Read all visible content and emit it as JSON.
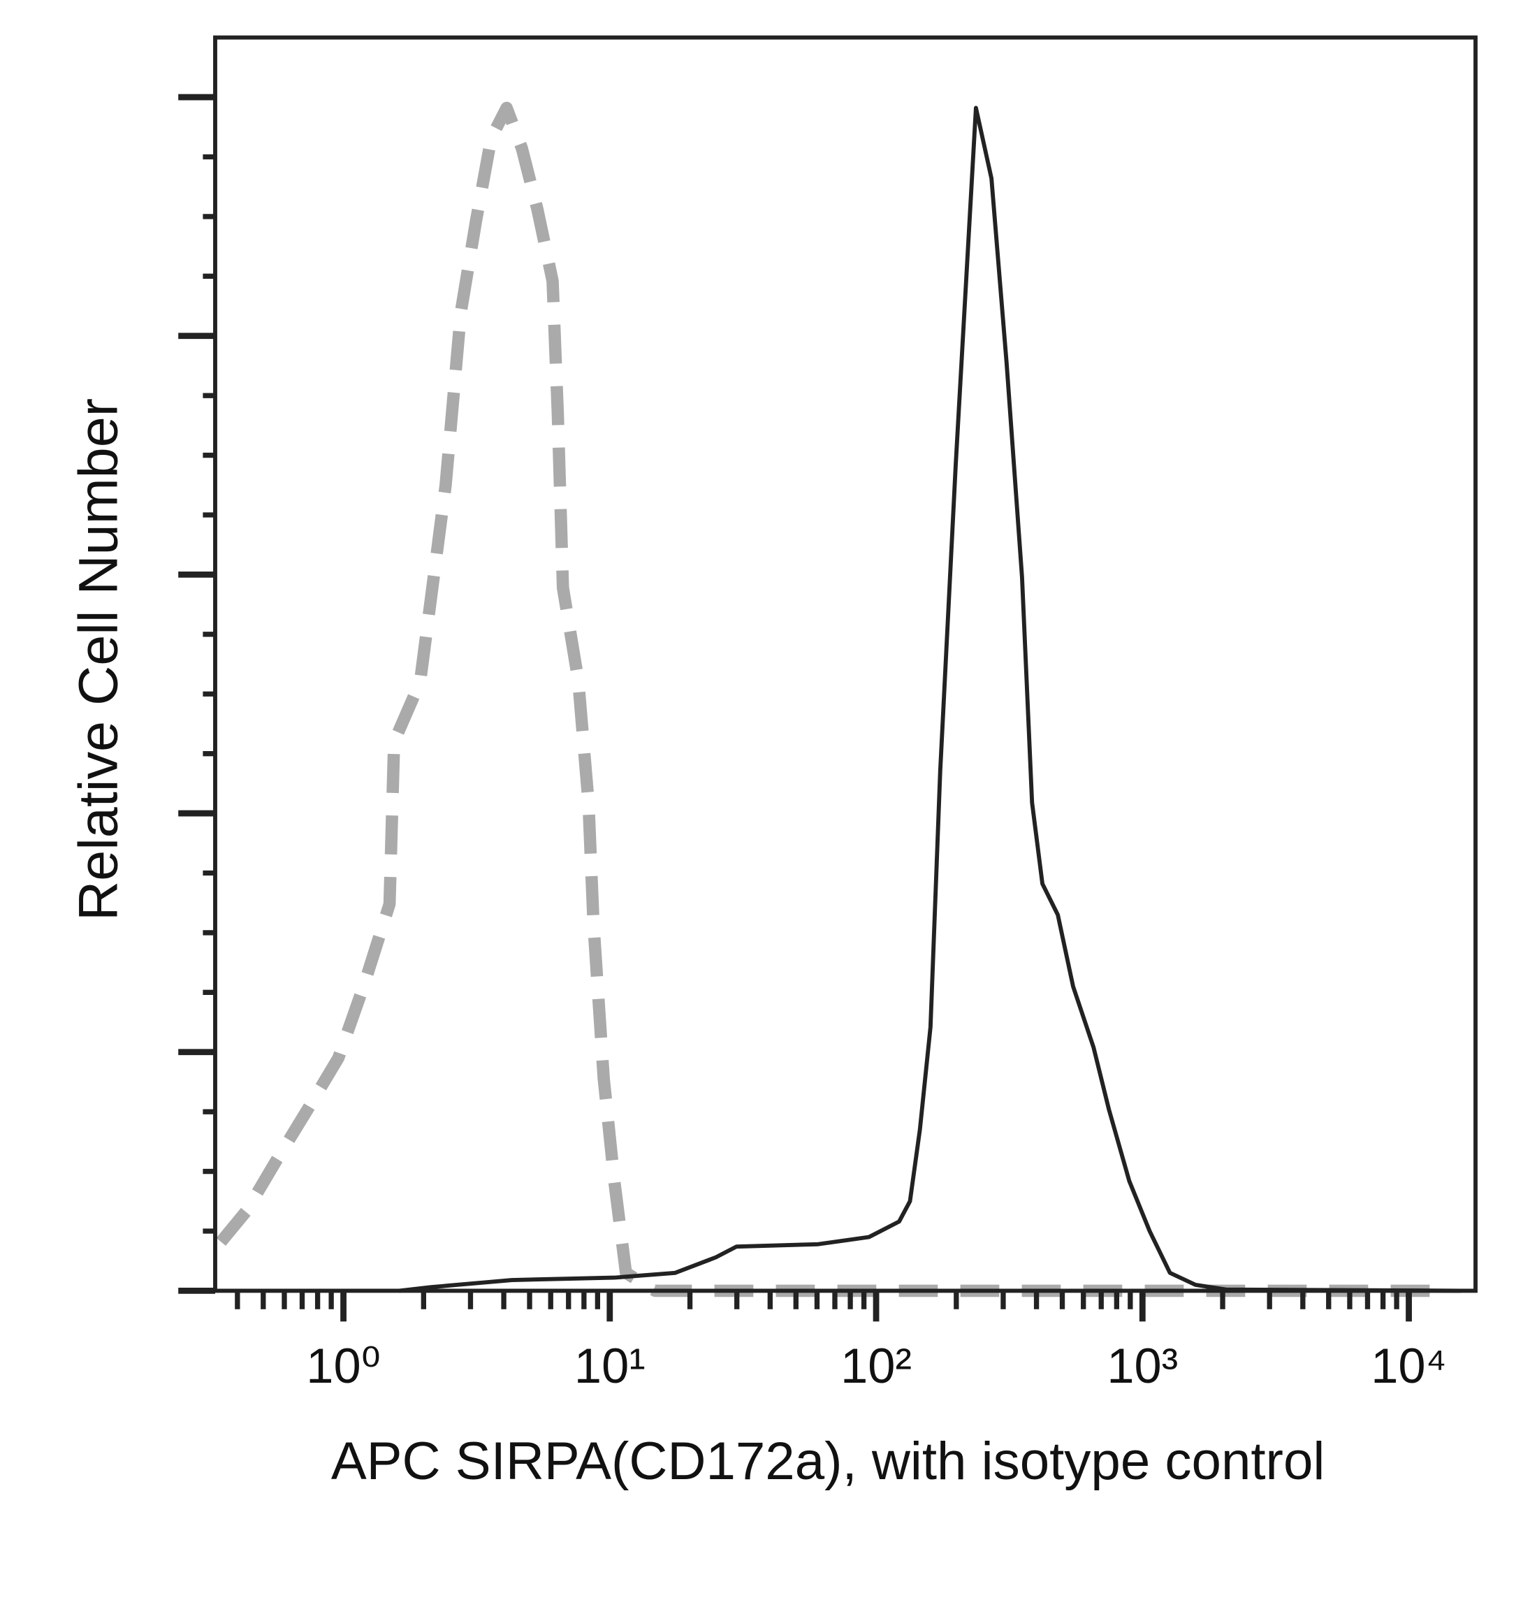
{
  "chart_data": {
    "type": "line",
    "xscale": "log",
    "xlabel": "APC SIRPA(CD172a), with isotype control",
    "ylabel": "Relative Cell Number",
    "xlim": [
      0.33,
      17800
    ],
    "ylim": [
      0,
      105
    ],
    "xticks": [
      {
        "value": 1,
        "label": "10⁰"
      },
      {
        "value": 10,
        "label": "10¹"
      },
      {
        "value": 100,
        "label": "10²"
      },
      {
        "value": 1000,
        "label": "10³"
      },
      {
        "value": 10000,
        "label": "10⁴"
      }
    ],
    "xminor_ticks": [
      0.4,
      0.5,
      0.6,
      0.7,
      0.8,
      0.9,
      2,
      3,
      4,
      5,
      6,
      7,
      8,
      9,
      20,
      30,
      40,
      50,
      60,
      70,
      80,
      90,
      200,
      300,
      400,
      500,
      600,
      700,
      800,
      900,
      2000,
      3000,
      4000,
      5000,
      6000,
      7000,
      8000,
      9000
    ],
    "yticks": [
      0,
      20,
      40,
      60,
      80,
      100
    ],
    "yminor_ticks": [
      5,
      10,
      15,
      25,
      30,
      35,
      45,
      50,
      55,
      65,
      70,
      75,
      85,
      90,
      95
    ],
    "ytick_labels": false,
    "grid": false,
    "series": [
      {
        "color": "#aaaaaa",
        "dash": true,
        "x": [
          0.347,
          0.433,
          0.563,
          0.734,
          0.957,
          1.19,
          1.49,
          1.55,
          1.94,
          2.42,
          2.76,
          3.15,
          3.59,
          4.1,
          4.68,
          5.35,
          6.1,
          6.38,
          6.67,
          7.61,
          8.32,
          8.69,
          9.49,
          10.4,
          11.5,
          14.8,
          353,
          14400
        ],
        "values": [
          4.1,
          6.7,
          11,
          15.2,
          19.5,
          25.5,
          32.4,
          46,
          51,
          67.5,
          82,
          89.7,
          96.6,
          99.1,
          95.7,
          90.6,
          84.6,
          73.5,
          58.9,
          51.2,
          40.9,
          30.7,
          17.8,
          9.2,
          1.5,
          0,
          0,
          0
        ]
      },
      {
        "color": "#222222",
        "dash": false,
        "x": [
          1.62,
          2.12,
          4.29,
          10.4,
          17.6,
          25,
          29.9,
          60.5,
          94,
          122,
          134,
          146,
          160,
          174,
          199,
          237,
          271,
          309,
          353,
          385,
          421,
          481,
          549,
          655,
          748,
          892,
          1064,
          1268,
          1581,
          2061,
          15670
        ],
        "values": [
          0,
          0.3,
          0.9,
          1.1,
          1.5,
          2.8,
          3.7,
          3.9,
          4.5,
          5.8,
          7.5,
          13.5,
          22.1,
          43.5,
          69.2,
          99.1,
          93.2,
          77.7,
          59.8,
          40.9,
          34.1,
          31.5,
          25.5,
          20.4,
          15.2,
          9.2,
          5,
          1.5,
          0.5,
          0.1,
          0
        ]
      }
    ]
  }
}
